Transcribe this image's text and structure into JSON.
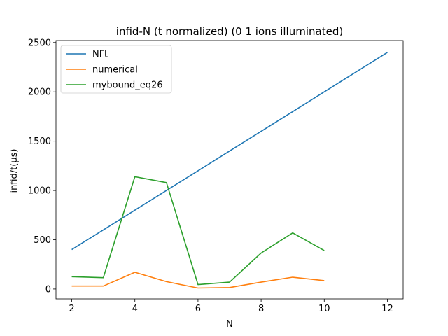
{
  "chart_data": {
    "type": "line",
    "title": "infid-N (t normalized) (0 1 ions illuminated)",
    "xlabel": "N",
    "ylabel": "infid/t(μs)",
    "xlim": [
      1.5,
      12.5
    ],
    "ylim": [
      -100,
      2520
    ],
    "xticks": [
      2,
      4,
      6,
      8,
      10,
      12
    ],
    "yticks": [
      0,
      500,
      1000,
      1500,
      2000,
      2500
    ],
    "legend_position": "upper-left",
    "grid": false,
    "series": [
      {
        "name": "NΓt",
        "color": "#1f77b4",
        "x": [
          2,
          3,
          4,
          5,
          6,
          7,
          8,
          9,
          10,
          11,
          12
        ],
        "y": [
          400,
          600,
          800,
          1000,
          1200,
          1400,
          1600,
          1800,
          2000,
          2200,
          2400
        ]
      },
      {
        "name": "numerical",
        "color": "#ff7f0e",
        "x": [
          2,
          3,
          4,
          5,
          6,
          7,
          8,
          9,
          10
        ],
        "y": [
          30,
          30,
          170,
          75,
          10,
          15,
          70,
          120,
          85
        ]
      },
      {
        "name": "mybound_eq26",
        "color": "#2ca02c",
        "x": [
          2,
          3,
          4,
          5,
          6,
          7,
          8,
          9,
          10
        ],
        "y": [
          125,
          115,
          1140,
          1080,
          45,
          70,
          365,
          570,
          390
        ]
      }
    ]
  }
}
